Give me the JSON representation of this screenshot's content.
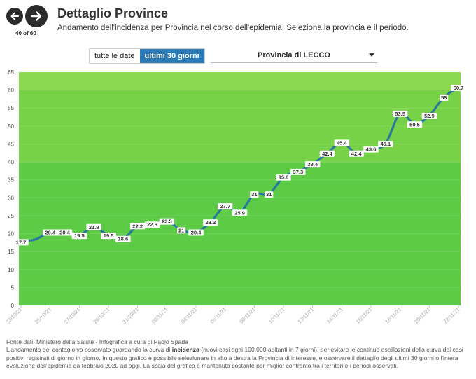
{
  "nav": {
    "counter": "40 of 60"
  },
  "header": {
    "title": "Dettaglio Province",
    "subtitle": "Andamento dell'incidenza per Provincia nel corso dell'epidemia. Seleziona la provincia e il periodo."
  },
  "controls": {
    "toggle_all": "tutte le date",
    "toggle_30": "ultimi 30 giorni",
    "province_selected": "Provincia di LECCO"
  },
  "colors": {
    "band_high": "#8bd94f",
    "band_mid": "#77d247",
    "band_low": "#5ecb46",
    "line": "#2a7a9b",
    "toggle_active": "#2a7ab8"
  },
  "chart_data": {
    "type": "line",
    "ylim": [
      0,
      65
    ],
    "yticks": [
      0,
      5,
      10,
      15,
      20,
      25,
      30,
      35,
      40,
      45,
      50,
      55,
      60,
      65
    ],
    "bands": [
      {
        "from": 0,
        "to": 40,
        "color": "#5ecb46"
      },
      {
        "from": 40,
        "to": 60,
        "color": "#77d247"
      },
      {
        "from": 60,
        "to": 65,
        "color": "#8bd94f"
      }
    ],
    "xticks": [
      "23/10/21",
      "25/10/21",
      "27/10/21",
      "29/10/21",
      "31/10/21",
      "02/11/21",
      "04/11/21",
      "06/11/21",
      "08/11/21",
      "10/11/21",
      "12/11/21",
      "14/11/21",
      "16/11/21",
      "18/11/21",
      "20/11/21",
      "22/11/21"
    ],
    "values": [
      17.7,
      18.4,
      20.4,
      20.4,
      19.5,
      21.9,
      19.5,
      18.6,
      22.2,
      22.6,
      23.5,
      21,
      20.4,
      23.2,
      27.7,
      25.9,
      31,
      31,
      35.8,
      37.3,
      39.4,
      42.4,
      45.4,
      42.4,
      43.6,
      45.1,
      53.5,
      50.5,
      52.9,
      58,
      60.7
    ],
    "labels": [
      "17.7",
      "",
      "20.4",
      "20.4",
      "19.5",
      "21.9",
      "19.5",
      "18.6",
      "22.2",
      "22.6",
      "23.5",
      "21",
      "20.4",
      "23.2",
      "27.7",
      "25.9",
      "31",
      "31",
      "35.8",
      "37.3",
      "39.4",
      "42.4",
      "45.4",
      "42.4",
      "43.6",
      "45.1",
      "53.5",
      "50.5",
      "52.9",
      "58",
      "60.7"
    ]
  },
  "footer": {
    "source_prefix": "Fonte dati: Ministero della Salute - Infografica a cura di ",
    "author": "Paolo Spada",
    "p1": "L'andamento del contagio va osservato guardando la curva di ",
    "p1_bold": "incidenza",
    "p1_rest": " (nuovi casi ogni 100.000 abitanti in 7 giorni), per evitare le continue oscillazioni della curva dei casi positivi registrati di giorno in giorno. In questo grafico è possibile selezionare in alto a destra la Provincia di interesse, e osservare il dettaglio degli ultimi 30 giorni o l'intera evoluzione dell'epidemia da febbraio 2020 ad oggi. La scala del grafico è mantenuta costante per miglior confronto tra i territori e i periodi osservati."
  }
}
